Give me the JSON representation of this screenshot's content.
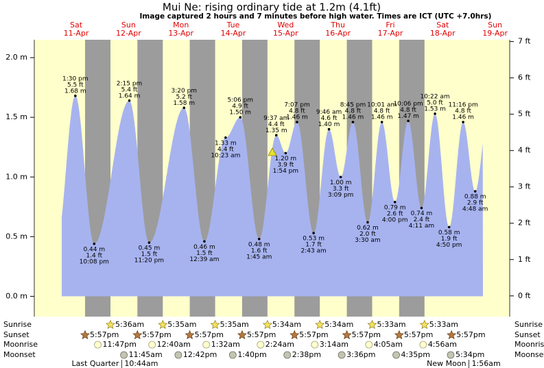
{
  "chart_data": {
    "type": "area",
    "title": "Mui Ne: rising  ordinary tide at 1.2m (4.1ft)",
    "subtitle": "Image captured 2 hours and 7 minutes before high water. Times are ICT (UTC +7.0hrs)",
    "color": "#a7b3ef",
    "day_color": "#ffffcc",
    "night_color": "#9c9c9c",
    "ylim": [
      -0.17,
      2.15
    ],
    "yticks": [
      {
        "value": 0,
        "label": "0.0 m"
      },
      {
        "value": 0.5,
        "label": "0.5 m"
      },
      {
        "value": 1,
        "label": "1.0 m"
      },
      {
        "value": 1.5,
        "label": "1.5 m"
      },
      {
        "value": 2,
        "label": "2.0 m"
      }
    ],
    "y2lim": [
      -0.57,
      7.05
    ],
    "y2ticks": [
      {
        "value": 0,
        "label": "0 ft"
      },
      {
        "value": 1,
        "label": "1 ft"
      },
      {
        "value": 2,
        "label": "2 ft"
      },
      {
        "value": 3,
        "label": "3 ft"
      },
      {
        "value": 4,
        "label": "4 ft"
      },
      {
        "value": 5,
        "label": "5 ft"
      },
      {
        "value": 6,
        "label": "6 ft"
      },
      {
        "value": 7,
        "label": "7 ft"
      }
    ],
    "almanac_labels": {
      "sunrise": "Sunrise",
      "sunset": "Sunset",
      "moonrise": "Moonrise",
      "moonset": "Moonset"
    },
    "days": [
      {
        "name": "Sat",
        "date": "11-Apr",
        "tides": [
          {
            "time": "1:30 pm",
            "ft": "5.5 ft",
            "value": 1.68,
            "label": "1.68 m"
          },
          {
            "time": "10:08 pm",
            "ft": "1.4 ft",
            "value": 0.44,
            "label": "0.44 m"
          }
        ],
        "sunset": "5:57pm",
        "moonrise": "11:47pm"
      },
      {
        "name": "Sun",
        "date": "12-Apr",
        "tides": [
          {
            "time": "2:15 pm",
            "ft": "5.4 ft",
            "value": 1.64,
            "label": "1.64 m"
          },
          {
            "time": "11:20 pm",
            "ft": "1.5 ft",
            "value": 0.45,
            "label": "0.45 m"
          }
        ],
        "sunrise": "5:36am",
        "sunset": "5:57pm",
        "moonset": "11:45am",
        "moon_phase": {
          "name": "Last Quarter",
          "time": "10:44am"
        }
      },
      {
        "name": "Mon",
        "date": "13-Apr",
        "tides": [
          {
            "time": "3:20 pm",
            "ft": "5.2 ft",
            "value": 1.58,
            "label": "1.58 m"
          }
        ],
        "sunrise": "5:35am",
        "sunset": "5:57pm",
        "moonrise": "12:40am",
        "moonset": "12:42pm"
      },
      {
        "name": "Tue",
        "date": "14-Apr",
        "tides": [
          {
            "time": "12:39 am",
            "ft": "1.5 ft",
            "value": 0.46,
            "label": "0.46 m"
          },
          {
            "time": "10:23 am",
            "ft": "4.4 ft",
            "value": 1.33,
            "label": "1.33 m"
          },
          {
            "time": "5:06 pm",
            "ft": "4.9 ft",
            "value": 1.5,
            "label": "1.50 m"
          }
        ],
        "sunrise": "5:35am",
        "sunset": "5:57pm",
        "moonrise": "1:32am",
        "moonset": "1:40pm"
      },
      {
        "name": "Wed",
        "date": "15-Apr",
        "tides": [
          {
            "time": "1:45 am",
            "ft": "1.6 ft",
            "value": 0.48,
            "label": "0.48 m"
          },
          {
            "time": "9:37 am",
            "ft": "4.4 ft",
            "value": 1.35,
            "label": "1.35 m"
          },
          {
            "time": "1:54 pm",
            "ft": "3.9 ft",
            "value": 1.2,
            "label": "1.20 m"
          },
          {
            "time": "7:07 pm",
            "ft": "4.8 ft",
            "value": 1.46,
            "label": "1.46 m"
          }
        ],
        "sunrise": "5:34am",
        "sunset": "5:57pm",
        "moonrise": "2:24am",
        "moonset": "2:38pm"
      },
      {
        "name": "Thu",
        "date": "16-Apr",
        "tides": [
          {
            "time": "2:43 am",
            "ft": "1.7 ft",
            "value": 0.53,
            "label": "0.53 m"
          },
          {
            "time": "9:46 am",
            "ft": "4.6 ft",
            "value": 1.4,
            "label": "1.40 m"
          },
          {
            "time": "3:09 pm",
            "ft": "3.3 ft",
            "value": 1.0,
            "label": "1.00 m"
          },
          {
            "time": "8:45 pm",
            "ft": "4.8 ft",
            "value": 1.46,
            "label": "1.46 m"
          }
        ],
        "sunrise": "5:34am",
        "sunset": "5:57pm",
        "moonrise": "3:14am",
        "moonset": "3:36pm"
      },
      {
        "name": "Fri",
        "date": "17-Apr",
        "tides": [
          {
            "time": "3:30 am",
            "ft": "2.0 ft",
            "value": 0.62,
            "label": "0.62 m"
          },
          {
            "time": "10:01 am",
            "ft": "4.8 ft",
            "value": 1.46,
            "label": "1.46 m"
          },
          {
            "time": "4:00 pm",
            "ft": "2.6 ft",
            "value": 0.79,
            "label": "0.79 m"
          },
          {
            "time": "10:06 pm",
            "ft": "4.8 ft",
            "value": 1.47,
            "label": "1.47 m"
          }
        ],
        "sunrise": "5:33am",
        "sunset": "5:57pm",
        "moonrise": "4:05am",
        "moonset": "4:35pm"
      },
      {
        "name": "Sat",
        "date": "18-Apr",
        "tides": [
          {
            "time": "4:11 am",
            "ft": "2.4 ft",
            "value": 0.74,
            "label": "0.74 m"
          },
          {
            "time": "10:22 am",
            "ft": "5.0 ft",
            "value": 1.53,
            "label": "1.53 m"
          },
          {
            "time": "4:50 pm",
            "ft": "1.9 ft",
            "value": 0.58,
            "label": "0.58 m"
          },
          {
            "time": "11:16 pm",
            "ft": "4.8 ft",
            "value": 1.46,
            "label": "1.46 m"
          }
        ],
        "sunrise": "5:33am",
        "sunset": "5:57pm",
        "moonrise": "4:56am",
        "moonset": "5:34pm"
      },
      {
        "name": "Sun",
        "date": "19-Apr",
        "tides": [
          {
            "time": "4:48 am",
            "ft": "2.9 ft",
            "value": 0.88,
            "label": "0.88 m"
          }
        ],
        "moon_phase": {
          "name": "New Moon",
          "time": "1:56am"
        }
      }
    ]
  }
}
